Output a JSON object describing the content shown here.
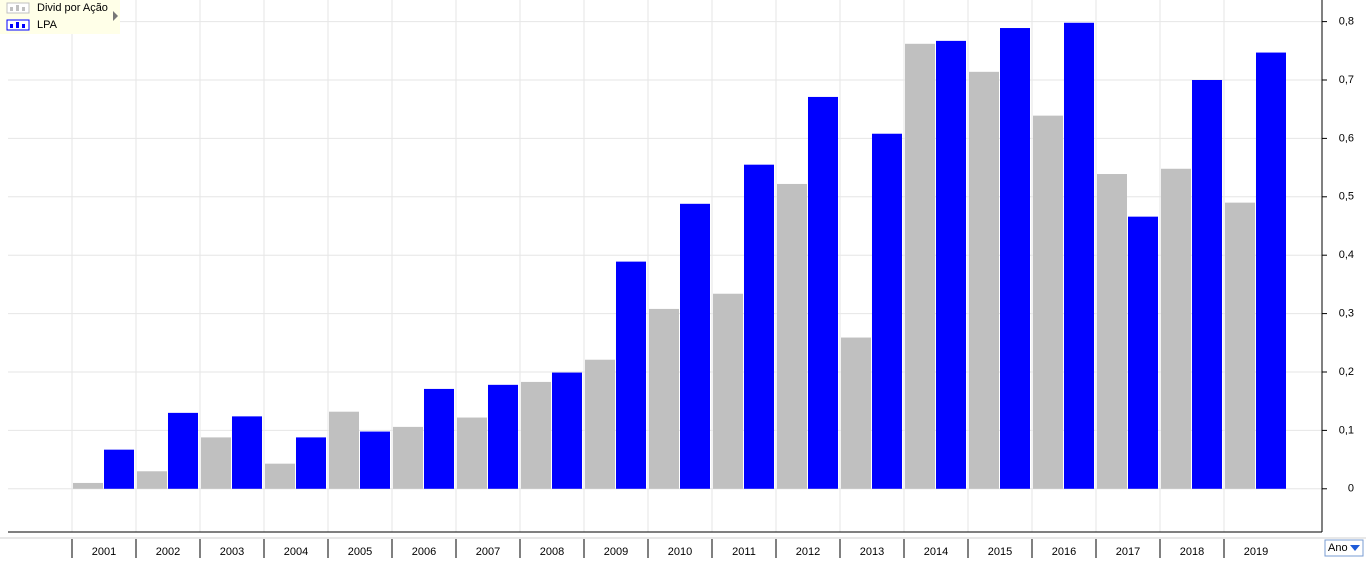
{
  "chart_data": {
    "type": "bar",
    "categories": [
      "2001",
      "2002",
      "2003",
      "2004",
      "2005",
      "2006",
      "2007",
      "2008",
      "2009",
      "2010",
      "2011",
      "2012",
      "2013",
      "2014",
      "2015",
      "2016",
      "2017",
      "2018",
      "2019"
    ],
    "series": [
      {
        "name": "Divid por Ação",
        "color": "#c0c0c0",
        "values": [
          0.01,
          0.03,
          0.088,
          0.043,
          0.132,
          0.106,
          0.122,
          0.183,
          0.221,
          0.308,
          0.334,
          0.522,
          0.259,
          0.762,
          0.714,
          0.639,
          0.539,
          0.548,
          0.49
        ]
      },
      {
        "name": "LPA",
        "color": "#0000ff",
        "values": [
          0.067,
          0.13,
          0.124,
          0.088,
          0.098,
          0.171,
          0.178,
          0.199,
          0.389,
          0.488,
          0.555,
          0.671,
          0.608,
          0.767,
          0.789,
          0.798,
          0.466,
          0.7,
          0.747
        ]
      }
    ],
    "ylim": [
      -0.074,
      0.837
    ],
    "yticks": [
      0,
      {
        "value": 0.1,
        "label": "0,1"
      },
      {
        "value": 0.2,
        "label": "0,2"
      },
      {
        "value": 0.3,
        "label": "0,3"
      },
      {
        "value": 0.4,
        "label": "0,4"
      },
      {
        "value": 0.5,
        "label": "0,5"
      },
      {
        "value": 0.6,
        "label": "0,6"
      },
      {
        "value": 0.7,
        "label": "0,7"
      },
      {
        "value": 0.8,
        "label": "0,8"
      }
    ],
    "grid": true,
    "legend": "top-left",
    "period": "Ano"
  }
}
